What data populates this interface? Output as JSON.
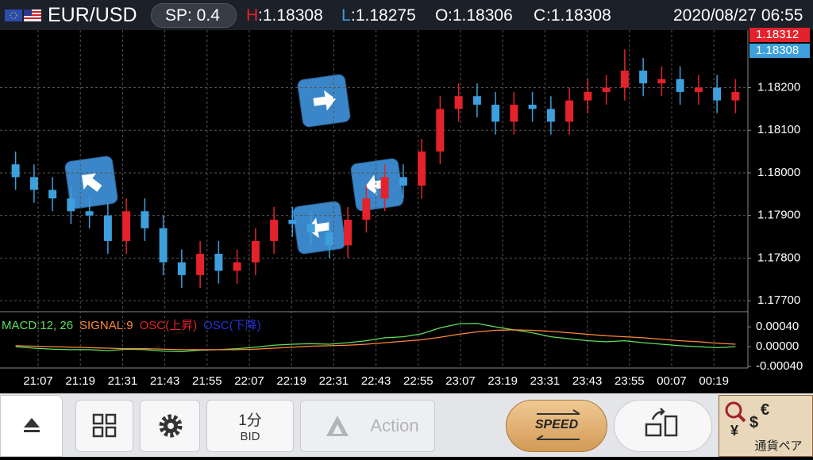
{
  "header": {
    "pair": "EUR/USD",
    "spread": "SP: 0.4",
    "high_key": "H",
    "high_value": ":1.18308",
    "low_key": "L",
    "low_value": ":1.18275",
    "open_key": "O",
    "open_value": ":1.18306",
    "close_key": "C",
    "close_value": ":1.18308",
    "datetime": "2020/08/27 06:55"
  },
  "chart_data": {
    "type": "candlestick",
    "up_color": "#e3222b",
    "down_color": "#3d9fdc",
    "grid": true,
    "open": [
      1.1802,
      1.1799,
      1.1796,
      1.1794,
      1.1791,
      1.179,
      1.1784,
      1.1791,
      1.1787,
      1.1779,
      1.1776,
      1.1781,
      1.1777,
      1.1779,
      1.1784,
      1.1789,
      1.1788,
      1.1786,
      1.1783,
      1.1789,
      1.1794,
      1.1799,
      1.1797,
      1.1805,
      1.1815,
      1.1818,
      1.1816,
      1.1812,
      1.1816,
      1.1815,
      1.1812,
      1.1817,
      1.1819,
      1.182,
      1.1824,
      1.1821,
      1.1822,
      1.1819,
      1.182,
      1.1817
    ],
    "high": [
      1.1805,
      1.1802,
      1.1799,
      1.1797,
      1.1794,
      1.1793,
      1.1794,
      1.1794,
      1.179,
      1.1782,
      1.1784,
      1.1784,
      1.1782,
      1.1787,
      1.1792,
      1.1792,
      1.1791,
      1.1789,
      1.1792,
      1.1797,
      1.1802,
      1.1802,
      1.1808,
      1.1818,
      1.1821,
      1.1821,
      1.1819,
      1.1819,
      1.1819,
      1.1818,
      1.182,
      1.1822,
      1.1823,
      1.1829,
      1.1827,
      1.1825,
      1.1825,
      1.1823,
      1.1823,
      1.1822
    ],
    "low": [
      1.1796,
      1.1793,
      1.1791,
      1.1788,
      1.1787,
      1.1781,
      1.1781,
      1.1784,
      1.1776,
      1.1773,
      1.1773,
      1.1774,
      1.1774,
      1.1776,
      1.1781,
      1.1785,
      1.1783,
      1.178,
      1.178,
      1.1786,
      1.1791,
      1.1794,
      1.1794,
      1.1802,
      1.1812,
      1.1813,
      1.1809,
      1.1809,
      1.1812,
      1.1809,
      1.1809,
      1.1814,
      1.1816,
      1.1817,
      1.1818,
      1.1818,
      1.1816,
      1.1816,
      1.1814,
      1.1814
    ],
    "close": [
      1.1799,
      1.1796,
      1.1794,
      1.1791,
      1.179,
      1.1784,
      1.1791,
      1.1787,
      1.1779,
      1.1776,
      1.1781,
      1.1777,
      1.1779,
      1.1784,
      1.1789,
      1.1788,
      1.1786,
      1.1783,
      1.1789,
      1.1794,
      1.1799,
      1.1797,
      1.1805,
      1.1815,
      1.1818,
      1.1816,
      1.1812,
      1.1816,
      1.1815,
      1.1812,
      1.1817,
      1.1819,
      1.182,
      1.1824,
      1.1821,
      1.1822,
      1.1819,
      1.182,
      1.1817,
      1.1819
    ],
    "ylim": [
      1.17676,
      1.18335
    ],
    "yticks": [
      {
        "value": 1.177,
        "label": "1.17700"
      },
      {
        "value": 1.178,
        "label": "1.17800"
      },
      {
        "value": 1.179,
        "label": "1.17900"
      },
      {
        "value": 1.18,
        "label": "1.18000"
      },
      {
        "value": 1.181,
        "label": "1.18100"
      },
      {
        "value": 1.182,
        "label": "1.18200"
      }
    ],
    "price_labels": [
      {
        "label": "1.18312",
        "color": "#e3222b"
      },
      {
        "label": "1.18308",
        "color": "#3d9fdc"
      }
    ],
    "time_labels": [
      "21:07",
      "21:19",
      "21:31",
      "21:43",
      "21:55",
      "22:07",
      "22:19",
      "22:31",
      "22:43",
      "22:55",
      "23:07",
      "23:19",
      "23:31",
      "23:43",
      "23:55",
      "00:07",
      "00:19"
    ],
    "macd": {
      "type": "line",
      "ylim": [
        -0.00043,
        0.00069
      ],
      "yticks": [
        {
          "value": 0.0004,
          "label": "0.00040"
        },
        {
          "value": 0,
          "label": "0.00000"
        },
        {
          "value": -0.0004,
          "label": "-0.00040"
        }
      ],
      "series": [
        {
          "name": "MACD:12, 26",
          "color": "#5fe05f",
          "values": [
            0.0,
            -3e-05,
            -5e-05,
            -6e-05,
            -6e-05,
            -8e-05,
            -5e-05,
            -6e-05,
            -9e-05,
            -0.0001,
            -7e-05,
            -6e-05,
            -4e-05,
            -1e-05,
            3e-05,
            5e-05,
            6e-05,
            5e-05,
            8e-05,
            0.00012,
            0.00018,
            0.0002,
            0.00026,
            0.00038,
            0.00046,
            0.00047,
            0.0004,
            0.00034,
            0.00028,
            0.0002,
            0.00016,
            0.00012,
            0.0001,
            0.00012,
            8e-05,
            5e-05,
            2e-05,
            0.0,
            -2e-05,
            0.0
          ]
        },
        {
          "name": "SIGNAL:9",
          "color": "#ff8a3a",
          "values": [
            2e-05,
            1e-05,
            0.0,
            -1e-05,
            -2e-05,
            -3e-05,
            -4e-05,
            -4e-05,
            -5e-05,
            -6e-05,
            -6e-05,
            -6e-05,
            -6e-05,
            -5e-05,
            -3e-05,
            -1e-05,
            1e-05,
            2e-05,
            3e-05,
            5e-05,
            8e-05,
            0.00011,
            0.00014,
            0.00019,
            0.00025,
            0.0003,
            0.00033,
            0.00034,
            0.00033,
            0.00031,
            0.00028,
            0.00025,
            0.00022,
            0.0002,
            0.00018,
            0.00015,
            0.00012,
            0.0001,
            7e-05,
            5e-05
          ]
        }
      ],
      "osc_labels": [
        {
          "name": "OSC(上昇)",
          "color": "#e3222b"
        },
        {
          "name": "OSC(下降)",
          "color": "#2433d8"
        }
      ]
    }
  },
  "toolbar": {
    "timeframe": "1分",
    "price_type": "BID",
    "action": "Action",
    "speed": "SPEED",
    "pairs": "通貨ペア"
  }
}
